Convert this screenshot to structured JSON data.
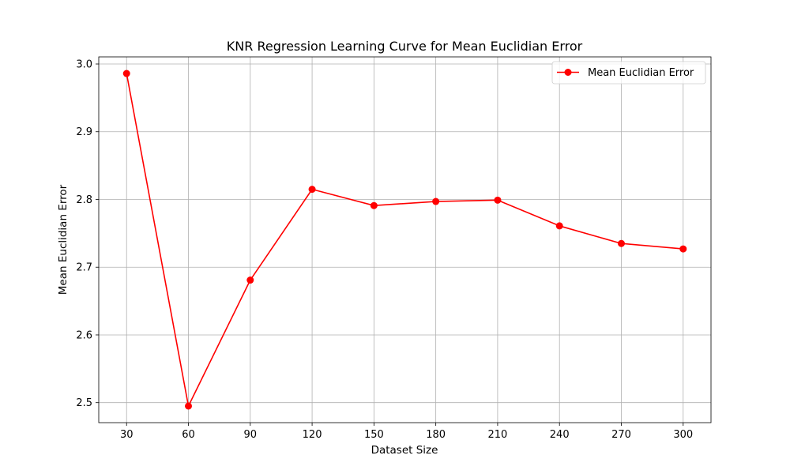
{
  "chart_data": {
    "type": "line",
    "title": "KNR Regression Learning Curve for Mean Euclidian Error",
    "xlabel": "Dataset Size",
    "ylabel": "Mean Euclidian Error",
    "x": [
      30,
      60,
      90,
      120,
      150,
      180,
      210,
      240,
      270,
      300
    ],
    "x_ticks": [
      "30",
      "60",
      "90",
      "120",
      "150",
      "180",
      "210",
      "240",
      "270",
      "300"
    ],
    "y_ticks": [
      "2.5",
      "2.6",
      "2.7",
      "2.8",
      "2.9",
      "3.0"
    ],
    "xlim": [
      16.5,
      313.5
    ],
    "ylim": [
      2.4705,
      3.0105
    ],
    "grid": true,
    "legend_position": "top-right",
    "series": [
      {
        "name": "Mean Euclidian Error",
        "color": "#ff0000",
        "marker": "circle",
        "values": [
          2.986,
          2.495,
          2.681,
          2.815,
          2.791,
          2.797,
          2.799,
          2.761,
          2.735,
          2.727
        ]
      }
    ]
  }
}
